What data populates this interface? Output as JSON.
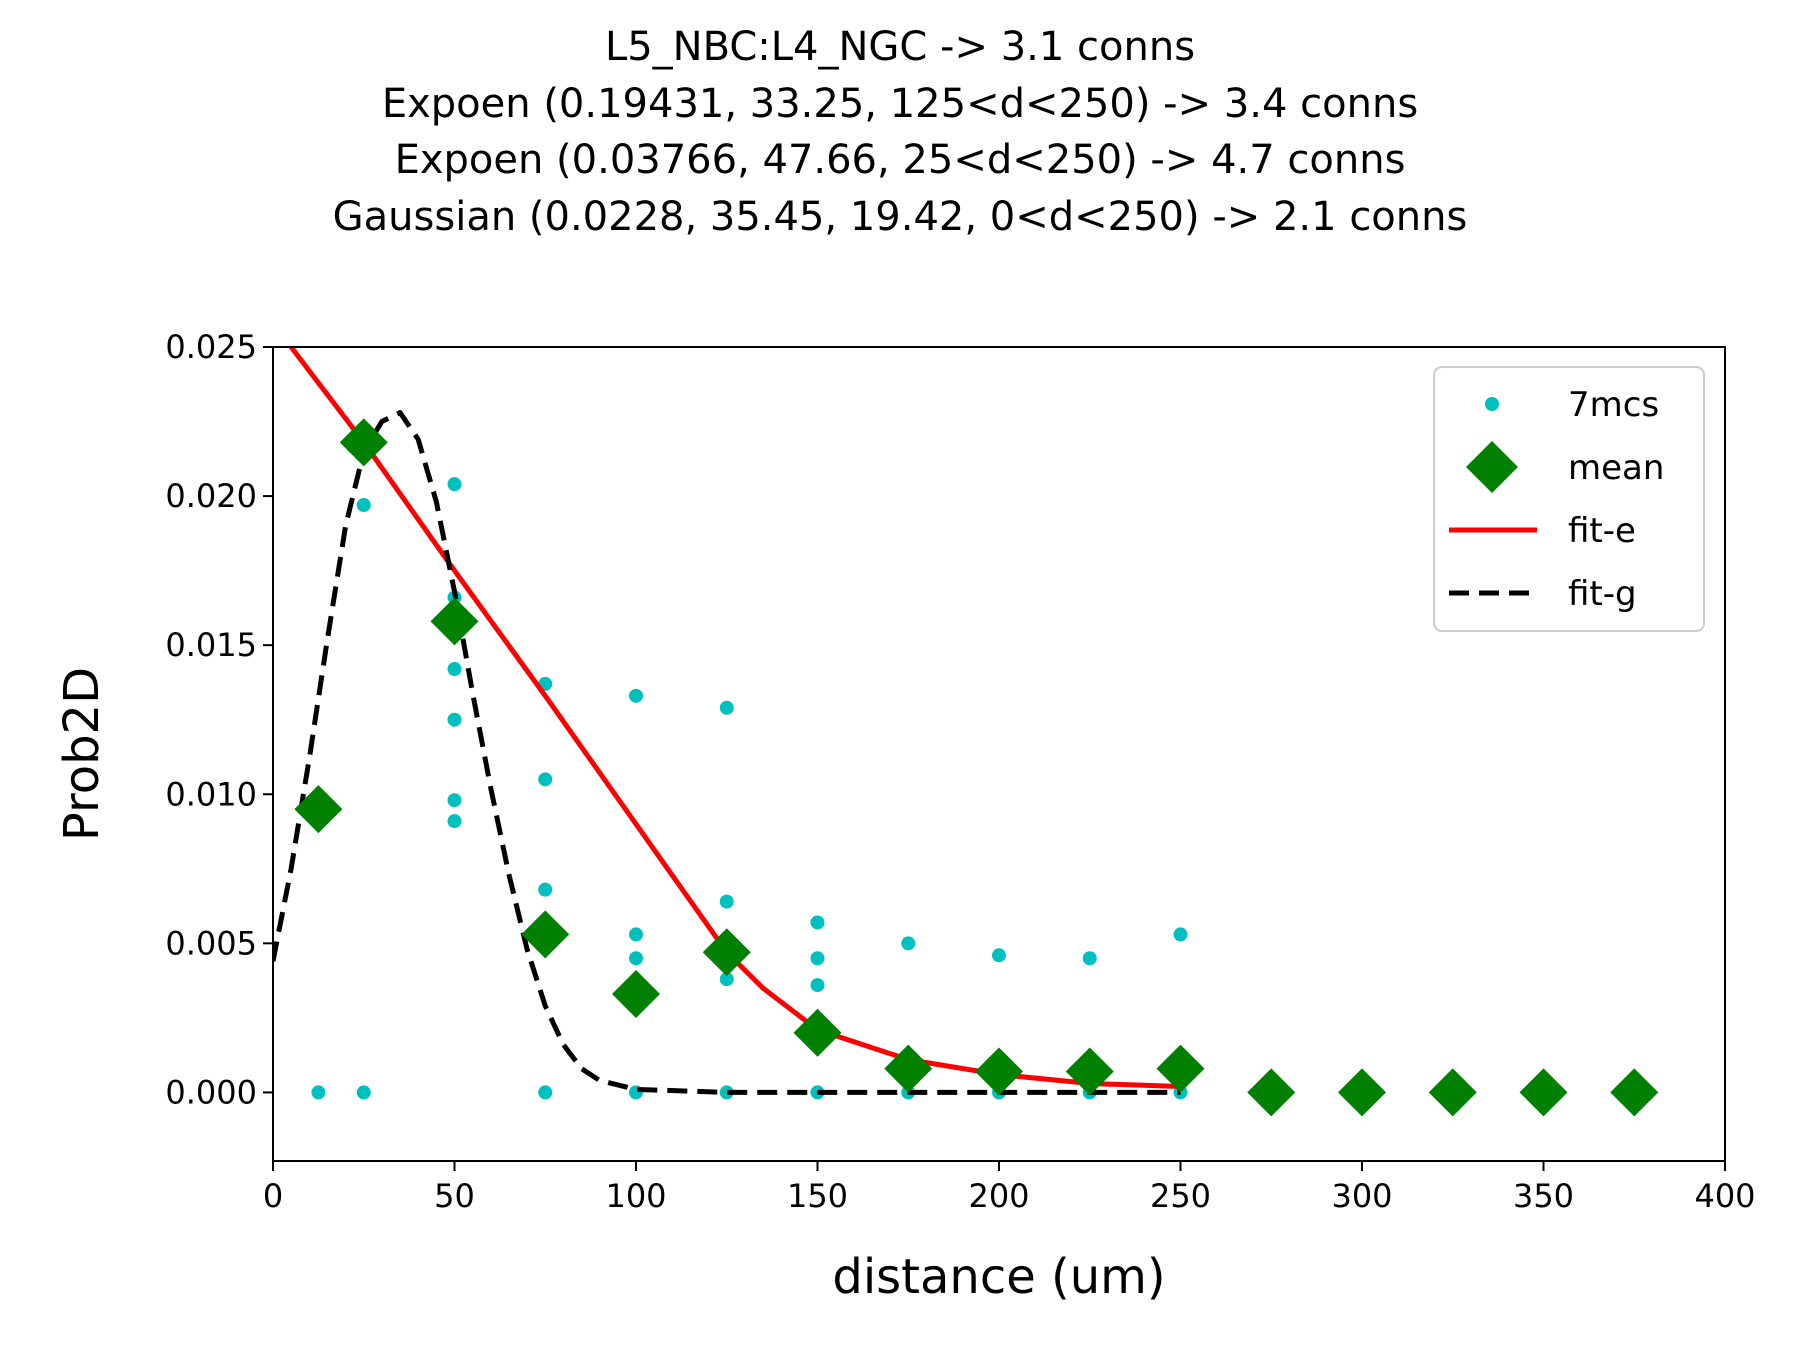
{
  "chart_data": {
    "type": "scatter",
    "title_lines": [
      "L5_NBC:L4_NGC -> 3.1 conns",
      "Expoen (0.19431, 33.25, 125<d<250) -> 3.4 conns",
      "Expoen (0.03766, 47.66, 25<d<250) -> 4.7 conns",
      "Gaussian (0.0228, 35.45, 19.42, 0<d<250) -> 2.1 conns"
    ],
    "xlabel": "distance (um)",
    "ylabel": "Prob2D",
    "xlim": [
      0,
      400
    ],
    "ylim": [
      -0.0023,
      0.025
    ],
    "xticks": [
      0,
      50,
      100,
      150,
      200,
      250,
      300,
      350,
      400
    ],
    "xtick_labels": [
      "0",
      "50",
      "100",
      "150",
      "200",
      "250",
      "300",
      "350",
      "400"
    ],
    "yticks": [
      0.0,
      0.005,
      0.01,
      0.015,
      0.02,
      0.025
    ],
    "ytick_labels": [
      "0.000",
      "0.005",
      "0.010",
      "0.015",
      "0.020",
      "0.025"
    ],
    "grid": false,
    "legend": {
      "placement": "top-right",
      "entries": [
        "7mcs",
        "mean",
        "fit-e",
        "fit-g"
      ]
    },
    "colors": {
      "points": "#00bfbf",
      "mean": "#008000",
      "fit_e": "#ff0000",
      "fit_g": "#000000"
    },
    "series": [
      {
        "name": "7mcs",
        "kind": "points",
        "points": [
          [
            12.5,
            0.0
          ],
          [
            25,
            0.0197
          ],
          [
            25,
            0.0
          ],
          [
            50,
            0.0204
          ],
          [
            50,
            0.0166
          ],
          [
            50,
            0.0142
          ],
          [
            50,
            0.0125
          ],
          [
            50,
            0.0098
          ],
          [
            50,
            0.0091
          ],
          [
            75,
            0.0137
          ],
          [
            75,
            0.0105
          ],
          [
            75,
            0.0068
          ],
          [
            75,
            0.0
          ],
          [
            100,
            0.0133
          ],
          [
            100,
            0.0053
          ],
          [
            100,
            0.0045
          ],
          [
            100,
            0.0
          ],
          [
            125,
            0.0129
          ],
          [
            125,
            0.0064
          ],
          [
            125,
            0.0038
          ],
          [
            125,
            0.0
          ],
          [
            150,
            0.0057
          ],
          [
            150,
            0.0045
          ],
          [
            150,
            0.0036
          ],
          [
            150,
            0.0
          ],
          [
            175,
            0.005
          ],
          [
            175,
            0.0
          ],
          [
            200,
            0.0046
          ],
          [
            200,
            0.0
          ],
          [
            225,
            0.0045
          ],
          [
            225,
            0.0
          ],
          [
            250,
            0.0053
          ],
          [
            250,
            0.0
          ]
        ]
      },
      {
        "name": "mean",
        "kind": "diamonds",
        "points": [
          [
            12.5,
            0.0095
          ],
          [
            25,
            0.0218
          ],
          [
            50,
            0.0158
          ],
          [
            75,
            0.0053
          ],
          [
            100,
            0.0033
          ],
          [
            125,
            0.0047
          ],
          [
            150,
            0.002
          ],
          [
            175,
            0.0008
          ],
          [
            200,
            0.0007
          ],
          [
            225,
            0.0007
          ],
          [
            250,
            0.0008
          ],
          [
            275,
            0.0
          ],
          [
            300,
            0.0
          ],
          [
            325,
            0.0
          ],
          [
            350,
            0.0
          ],
          [
            375,
            0.0
          ]
        ]
      },
      {
        "name": "fit-e",
        "kind": "line",
        "points": [
          [
            5,
            0.025
          ],
          [
            25,
            0.0218
          ],
          [
            50,
            0.0175
          ],
          [
            75,
            0.0133
          ],
          [
            100,
            0.009
          ],
          [
            125,
            0.0047
          ],
          [
            135,
            0.0035
          ],
          [
            150,
            0.0021
          ],
          [
            175,
            0.0011
          ],
          [
            200,
            0.0006
          ],
          [
            225,
            0.0003
          ],
          [
            250,
            0.0002
          ]
        ]
      },
      {
        "name": "fit-g",
        "kind": "dashed",
        "points": [
          [
            0,
            0.0044
          ],
          [
            5,
            0.0075
          ],
          [
            10,
            0.0112
          ],
          [
            15,
            0.0152
          ],
          [
            20,
            0.019
          ],
          [
            25,
            0.0215
          ],
          [
            30,
            0.0225
          ],
          [
            35,
            0.0228
          ],
          [
            40,
            0.0219
          ],
          [
            45,
            0.0198
          ],
          [
            50,
            0.0168
          ],
          [
            55,
            0.0134
          ],
          [
            60,
            0.0102
          ],
          [
            65,
            0.0073
          ],
          [
            70,
            0.0048
          ],
          [
            75,
            0.0029
          ],
          [
            80,
            0.0016
          ],
          [
            85,
            0.0008
          ],
          [
            90,
            0.0004
          ],
          [
            100,
            0.0001
          ],
          [
            125,
            0.0
          ],
          [
            150,
            0.0
          ],
          [
            175,
            0.0
          ],
          [
            200,
            0.0
          ],
          [
            225,
            0.0
          ],
          [
            250,
            0.0
          ]
        ]
      }
    ]
  }
}
